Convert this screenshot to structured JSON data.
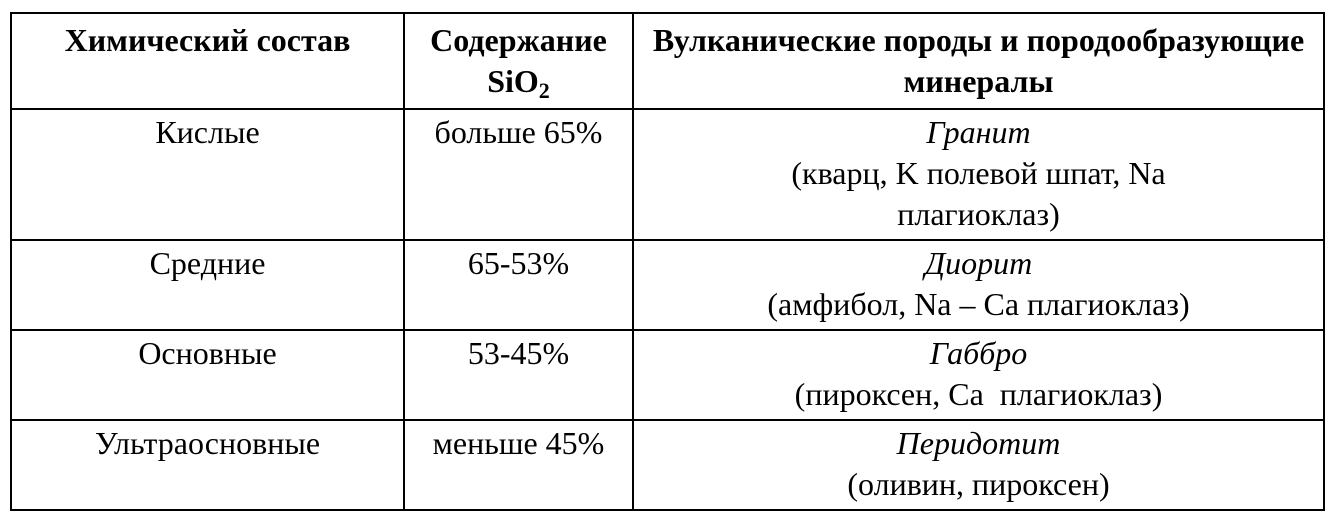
{
  "table": {
    "headers": {
      "composition": "Химический состав",
      "sio2_prefix": "Содержание",
      "sio2_formula": "SiO",
      "sio2_subscript": "2",
      "rocks": "Вулканические породы и породообразующие минералы"
    },
    "rows": [
      {
        "composition": "Кислые",
        "sio2": "больше 65%",
        "rock": "Гранит",
        "minerals": "(кварц, K полевой шпат, Na плагиоклаз)"
      },
      {
        "composition": "Средние",
        "sio2": "65-53%",
        "rock": "Диорит",
        "minerals": "(амфибол, Na – Ca плагиоклаз)"
      },
      {
        "composition": "Основные",
        "sio2": "53-45%",
        "rock": "Габбро",
        "minerals": "(пироксен, Ca  плагиоклаз)"
      },
      {
        "composition": "Ультраосновные",
        "sio2": "меньше 45%",
        "rock": "Перидотит",
        "minerals": "(оливин, пироксен)"
      }
    ]
  }
}
